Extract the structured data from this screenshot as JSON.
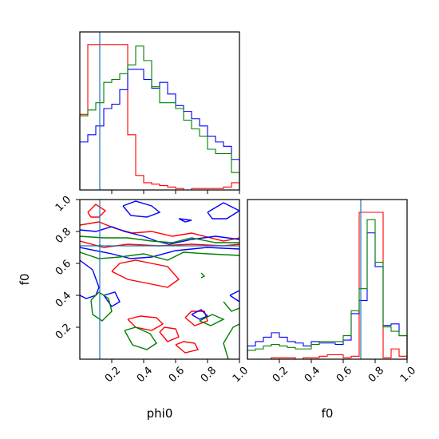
{
  "chart_data": [
    {
      "panel": "phi0-marginal",
      "type": "histogram",
      "x_range": [
        0,
        1
      ],
      "bins": 20,
      "truth": 0.125,
      "series": [
        {
          "color": "#ff0000",
          "values": [
            0.52,
            1.0,
            1.0,
            1.0,
            1.0,
            1.0,
            0.38,
            0.1,
            0.05,
            0.04,
            0.03,
            0.02,
            0.01,
            0.0,
            0.01,
            0.01,
            0.01,
            0.01,
            0.02,
            0.05
          ]
        },
        {
          "color": "#0000ff",
          "values": [
            0.33,
            0.38,
            0.44,
            0.56,
            0.59,
            0.69,
            0.83,
            0.83,
            0.76,
            0.7,
            0.74,
            0.66,
            0.58,
            0.54,
            0.49,
            0.44,
            0.37,
            0.33,
            0.3,
            0.21
          ]
        },
        {
          "color": "#008000",
          "values": [
            0.51,
            0.55,
            0.6,
            0.74,
            0.76,
            0.8,
            0.86,
            0.99,
            0.89,
            0.71,
            0.6,
            0.6,
            0.56,
            0.48,
            0.42,
            0.37,
            0.28,
            0.25,
            0.25,
            0.12
          ]
        }
      ]
    },
    {
      "panel": "phi0-f0-joint",
      "type": "contour",
      "x_range": [
        0,
        1
      ],
      "y_range": [
        0,
        1
      ],
      "truth": {
        "x": 0.125,
        "y": 0.71
      },
      "xticks": [
        "0.2",
        "0.4",
        "0.6",
        "0.8",
        "1.0"
      ],
      "yticks": [
        "0.2",
        "0.4",
        "0.6",
        "0.8",
        "1.0"
      ],
      "xlabel": "phi0",
      "ylabel": "f0",
      "series": [
        {
          "color": "#ff0000",
          "contours": [
            [
              [
                0.0,
                0.84
              ],
              [
                0.12,
                0.86
              ],
              [
                0.22,
                0.82
              ],
              [
                0.33,
                0.79
              ],
              [
                0.45,
                0.8
              ],
              [
                0.58,
                0.77
              ],
              [
                0.7,
                0.79
              ],
              [
                0.9,
                0.74
              ],
              [
                1.0,
                0.76
              ]
            ],
            [
              [
                0.0,
                0.74
              ],
              [
                0.15,
                0.7
              ],
              [
                0.3,
                0.72
              ],
              [
                0.5,
                0.71
              ],
              [
                0.7,
                0.72
              ],
              [
                0.9,
                0.71
              ],
              [
                1.0,
                0.72
              ]
            ],
            [
              [
                0.2,
                0.55
              ],
              [
                0.25,
                0.6
              ],
              [
                0.35,
                0.62
              ],
              [
                0.45,
                0.6
              ],
              [
                0.55,
                0.58
              ],
              [
                0.62,
                0.5
              ],
              [
                0.55,
                0.45
              ],
              [
                0.4,
                0.48
              ],
              [
                0.3,
                0.5
              ],
              [
                0.2,
                0.55
              ]
            ],
            [
              [
                0.3,
                0.25
              ],
              [
                0.35,
                0.2
              ],
              [
                0.45,
                0.18
              ],
              [
                0.52,
                0.22
              ],
              [
                0.48,
                0.26
              ],
              [
                0.38,
                0.27
              ],
              [
                0.3,
                0.25
              ]
            ],
            [
              [
                0.5,
                0.17
              ],
              [
                0.55,
                0.11
              ],
              [
                0.62,
                0.14
              ],
              [
                0.6,
                0.19
              ],
              [
                0.53,
                0.2
              ],
              [
                0.5,
                0.17
              ]
            ],
            [
              [
                0.6,
                0.09
              ],
              [
                0.66,
                0.04
              ],
              [
                0.74,
                0.06
              ],
              [
                0.72,
                0.1
              ],
              [
                0.65,
                0.11
              ],
              [
                0.6,
                0.09
              ]
            ],
            [
              [
                0.66,
                0.26
              ],
              [
                0.72,
                0.21
              ],
              [
                0.8,
                0.24
              ],
              [
                0.78,
                0.3
              ],
              [
                0.7,
                0.3
              ],
              [
                0.66,
                0.26
              ]
            ],
            [
              [
                0.05,
                0.92
              ],
              [
                0.1,
                0.97
              ],
              [
                0.16,
                0.93
              ],
              [
                0.12,
                0.89
              ],
              [
                0.07,
                0.89
              ],
              [
                0.05,
                0.92
              ]
            ]
          ]
        },
        {
          "color": "#0000ff",
          "contours": [
            [
              [
                0.0,
                0.81
              ],
              [
                0.1,
                0.8
              ],
              [
                0.2,
                0.83
              ],
              [
                0.28,
                0.8
              ],
              [
                0.4,
                0.77
              ],
              [
                0.48,
                0.74
              ],
              [
                0.56,
                0.72
              ],
              [
                0.7,
                0.75
              ],
              [
                0.85,
                0.77
              ],
              [
                1.0,
                0.75
              ]
            ],
            [
              [
                0.0,
                0.7
              ],
              [
                0.2,
                0.66
              ],
              [
                0.32,
                0.63
              ],
              [
                0.45,
                0.64
              ],
              [
                0.6,
                0.68
              ],
              [
                0.8,
                0.7
              ],
              [
                1.0,
                0.69
              ]
            ],
            [
              [
                0.0,
                0.62
              ],
              [
                0.08,
                0.56
              ],
              [
                0.12,
                0.45
              ],
              [
                0.1,
                0.4
              ],
              [
                0.04,
                0.38
              ],
              [
                0.0,
                0.4
              ]
            ],
            [
              [
                0.15,
                0.4
              ],
              [
                0.2,
                0.33
              ],
              [
                0.25,
                0.36
              ],
              [
                0.22,
                0.42
              ],
              [
                0.15,
                0.4
              ]
            ],
            [
              [
                0.27,
                0.96
              ],
              [
                0.35,
                0.99
              ],
              [
                0.45,
                0.96
              ],
              [
                0.5,
                0.92
              ],
              [
                0.42,
                0.89
              ],
              [
                0.32,
                0.9
              ],
              [
                0.27,
                0.96
              ]
            ],
            [
              [
                0.62,
                0.88
              ],
              [
                0.7,
                0.87
              ],
              [
                0.66,
                0.86
              ],
              [
                0.62,
                0.88
              ]
            ],
            [
              [
                0.8,
                0.92
              ],
              [
                0.9,
                0.98
              ],
              [
                1.0,
                0.93
              ],
              [
                0.92,
                0.88
              ],
              [
                0.83,
                0.88
              ],
              [
                0.8,
                0.92
              ]
            ],
            [
              [
                0.7,
                0.28
              ],
              [
                0.76,
                0.31
              ],
              [
                0.8,
                0.27
              ],
              [
                0.75,
                0.25
              ],
              [
                0.7,
                0.28
              ]
            ],
            [
              [
                0.94,
                0.4
              ],
              [
                1.0,
                0.43
              ],
              [
                1.0,
                0.36
              ],
              [
                0.94,
                0.4
              ]
            ]
          ]
        },
        {
          "color": "#008000",
          "contours": [
            [
              [
                0.0,
                0.77
              ],
              [
                0.15,
                0.76
              ],
              [
                0.3,
                0.76
              ],
              [
                0.45,
                0.74
              ],
              [
                0.58,
                0.73
              ],
              [
                0.7,
                0.76
              ],
              [
                0.85,
                0.73
              ],
              [
                1.0,
                0.73
              ]
            ],
            [
              [
                0.0,
                0.67
              ],
              [
                0.12,
                0.63
              ],
              [
                0.25,
                0.64
              ],
              [
                0.4,
                0.66
              ],
              [
                0.55,
                0.62
              ],
              [
                0.65,
                0.67
              ],
              [
                0.8,
                0.66
              ],
              [
                1.0,
                0.65
              ]
            ],
            [
              [
                0.07,
                0.37
              ],
              [
                0.12,
                0.42
              ],
              [
                0.18,
                0.38
              ],
              [
                0.2,
                0.3
              ],
              [
                0.14,
                0.24
              ],
              [
                0.08,
                0.28
              ],
              [
                0.07,
                0.37
              ]
            ],
            [
              [
                0.28,
                0.18
              ],
              [
                0.33,
                0.09
              ],
              [
                0.42,
                0.06
              ],
              [
                0.48,
                0.1
              ],
              [
                0.44,
                0.16
              ],
              [
                0.35,
                0.2
              ],
              [
                0.28,
                0.18
              ]
            ],
            [
              [
                0.75,
                0.24
              ],
              [
                0.82,
                0.21
              ],
              [
                0.9,
                0.25
              ],
              [
                0.83,
                0.28
              ],
              [
                0.75,
                0.24
              ]
            ],
            [
              [
                0.93,
                0.0
              ],
              [
                0.9,
                0.1
              ],
              [
                0.96,
                0.2
              ],
              [
                1.0,
                0.22
              ]
            ],
            [
              [
                0.9,
                0.36
              ],
              [
                0.95,
                0.3
              ],
              [
                1.0,
                0.32
              ]
            ],
            [
              [
                0.76,
                0.54
              ],
              [
                0.78,
                0.52
              ],
              [
                0.76,
                0.51
              ]
            ]
          ]
        }
      ]
    },
    {
      "panel": "f0-marginal",
      "type": "histogram",
      "x_range": [
        0,
        1
      ],
      "bins": 20,
      "truth": 0.71,
      "xticks": [
        "0.2",
        "0.4",
        "0.6",
        "0.8",
        "1.0"
      ],
      "xlabel": "f0",
      "series": [
        {
          "color": "#ff0000",
          "values": [
            0.0,
            0.0,
            0.0,
            0.01,
            0.01,
            0.01,
            0.0,
            0.01,
            0.01,
            0.02,
            0.03,
            0.03,
            0.01,
            0.02,
            1.0,
            1.0,
            1.0,
            0.01,
            0.07,
            0.02
          ]
        },
        {
          "color": "#0000ff",
          "values": [
            0.09,
            0.12,
            0.15,
            0.18,
            0.15,
            0.12,
            0.11,
            0.09,
            0.12,
            0.11,
            0.11,
            0.1,
            0.13,
            0.31,
            0.4,
            0.86,
            0.63,
            0.23,
            0.24,
            0.16
          ]
        },
        {
          "color": "#008000",
          "values": [
            0.06,
            0.07,
            0.09,
            0.1,
            0.09,
            0.08,
            0.07,
            0.07,
            0.1,
            0.12,
            0.12,
            0.12,
            0.16,
            0.33,
            0.48,
            0.95,
            0.66,
            0.22,
            0.19,
            0.16
          ]
        }
      ]
    }
  ]
}
